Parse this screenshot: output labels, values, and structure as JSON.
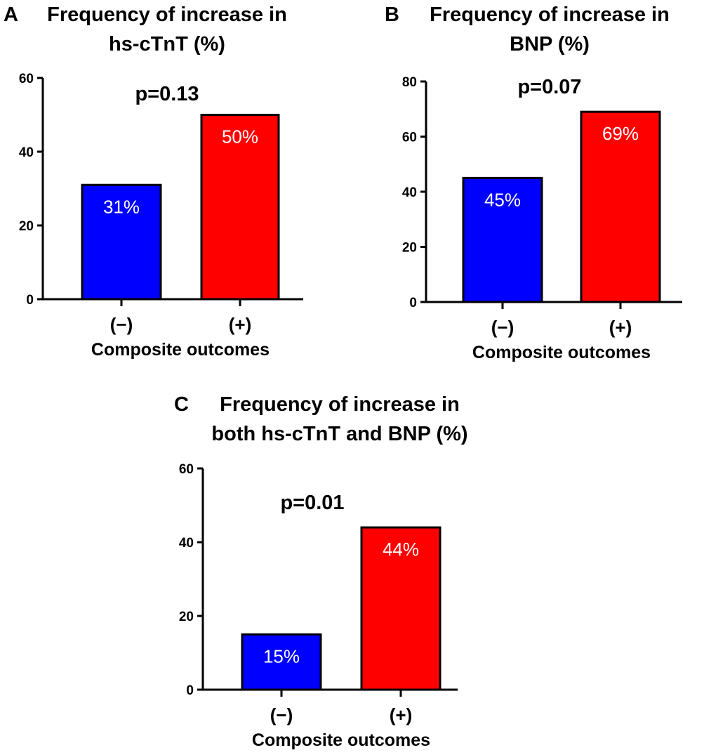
{
  "chart_data": [
    {
      "type": "bar",
      "panel_label": "A",
      "title_lines": [
        "Frequency of increase in",
        "hs-cTnT (%)"
      ],
      "annotation": "p=0.13",
      "xlabel": "Composite outcomes",
      "categories": [
        "(−)",
        "(+)"
      ],
      "values": [
        31,
        50
      ],
      "data_labels": [
        "31%",
        "50%"
      ],
      "colors": [
        "#0000FF",
        "#FF0000"
      ],
      "ylim": [
        0,
        60
      ],
      "yticks": [
        0,
        20,
        40,
        60
      ],
      "grid": false
    },
    {
      "type": "bar",
      "panel_label": "B",
      "title_lines": [
        "Frequency of increase in",
        "BNP (%)"
      ],
      "annotation": "p=0.07",
      "xlabel": "Composite outcomes",
      "categories": [
        "(−)",
        "(+)"
      ],
      "values": [
        45,
        69
      ],
      "data_labels": [
        "45%",
        "69%"
      ],
      "colors": [
        "#0000FF",
        "#FF0000"
      ],
      "ylim": [
        0,
        80
      ],
      "yticks": [
        0,
        20,
        40,
        60,
        80
      ],
      "grid": false
    },
    {
      "type": "bar",
      "panel_label": "C",
      "title_lines": [
        "Frequency of increase in",
        "both hs-cTnT and BNP (%)"
      ],
      "annotation": "p=0.01",
      "xlabel": "Composite outcomes",
      "categories": [
        "(−)",
        "(+)"
      ],
      "values": [
        15,
        44
      ],
      "data_labels": [
        "15%",
        "44%"
      ],
      "colors": [
        "#0000FF",
        "#FF0000"
      ],
      "ylim": [
        0,
        60
      ],
      "yticks": [
        0,
        20,
        40,
        60
      ],
      "grid": false
    }
  ]
}
